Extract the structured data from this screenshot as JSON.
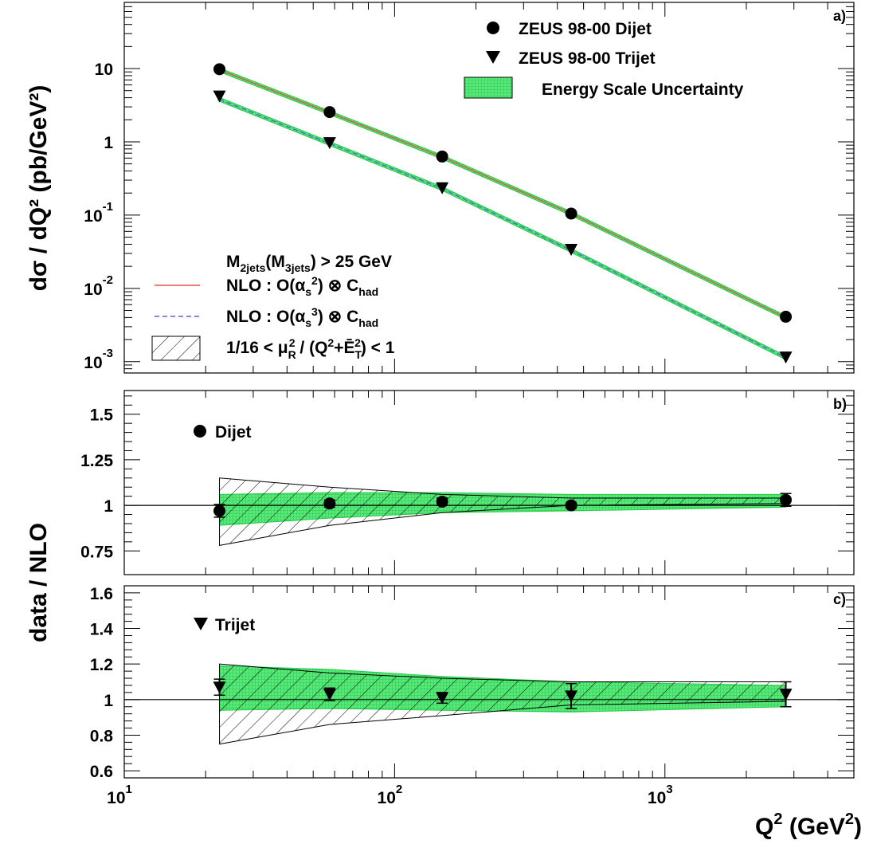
{
  "chart_data": [
    {
      "panel": "a)",
      "type": "scatter",
      "xscale": "log",
      "yscale": "log",
      "xlim": [
        10,
        5000
      ],
      "ylim": [
        0.0007,
        80
      ],
      "ylabel": "dσ / dQ² (pb/GeV²)",
      "ytick_labels": [
        {
          "value": 10,
          "base": "10",
          "exp": ""
        },
        {
          "value": 1,
          "base": "1",
          "exp": ""
        },
        {
          "value": 0.1,
          "base": "10",
          "exp": "-1"
        },
        {
          "value": 0.01,
          "base": "10",
          "exp": "-2"
        },
        {
          "value": 0.001,
          "base": "10",
          "exp": "-3"
        }
      ],
      "x": [
        22.5,
        57.5,
        150,
        450,
        2800
      ],
      "series": [
        {
          "name": "ZEUS 98-00 Dijet",
          "marker": "circle",
          "values": [
            9.8,
            2.55,
            0.63,
            0.105,
            0.0041
          ]
        },
        {
          "name": "ZEUS 98-00 Trijet",
          "marker": "triangle-down",
          "values": [
            4.2,
            0.97,
            0.235,
            0.034,
            0.00115
          ]
        }
      ],
      "nlo_dijet": [
        9.6,
        2.5,
        0.62,
        0.105,
        0.004
      ],
      "nlo_trijet": [
        3.8,
        0.95,
        0.23,
        0.033,
        0.00113
      ],
      "band_relative_width": 0.06,
      "legend_top": [
        {
          "marker": "circle",
          "label": "ZEUS 98-00 Dijet"
        },
        {
          "marker": "triangle-down",
          "label": "ZEUS 98-00 Trijet"
        },
        {
          "marker": "green-box",
          "label": "Energy Scale Uncertainty"
        }
      ],
      "legend_bottom": {
        "header": {
          "m1": "M",
          "s1": "2jets",
          "m2": "(M",
          "s2": "3jets",
          "m3": ")  >  25 GeV"
        },
        "nlo2": {
          "a": "NLO : O(α",
          "s": "s",
          "p": "2",
          "b": ") ⊗ C",
          "c": "had"
        },
        "nlo3": {
          "a": "NLO : O(α",
          "s": "s",
          "p": "3",
          "b": ") ⊗ C",
          "c": "had"
        },
        "scale": {
          "a": "1/16 < μ",
          "sub": "R",
          "sup": "2",
          "b": " / (Q",
          "p": "2",
          "c": "+Ē",
          "sub2": "T",
          "sup2": "2",
          "d": ") < 1"
        }
      },
      "colors": {
        "nlo2": "#e8534a",
        "nlo3": "#5a5ae8",
        "band": "#33dd55"
      }
    },
    {
      "panel": "b)",
      "type": "scatter",
      "xscale": "log",
      "xlim": [
        10,
        5000
      ],
      "ylim": [
        0.62,
        1.63
      ],
      "ytick_labels": [
        "1.5",
        "1.25",
        "1",
        "0.75"
      ],
      "ytick_values": [
        1.5,
        1.25,
        1.0,
        0.75
      ],
      "series_label": "Dijet",
      "x": [
        22.5,
        57.5,
        150,
        450,
        2800
      ],
      "values": [
        0.97,
        1.01,
        1.02,
        1.0,
        1.03
      ],
      "errors": [
        0.035,
        0.02,
        0.02,
        0.015,
        0.035
      ],
      "scale_band": {
        "lower": [
          0.78,
          0.89,
          0.96,
          1.0,
          1.01
        ],
        "upper": [
          1.15,
          1.1,
          1.06,
          1.04,
          1.04
        ]
      },
      "energy_band": {
        "lower": [
          0.89,
          0.93,
          0.96,
          0.97,
          0.99
        ],
        "upper": [
          1.06,
          1.07,
          1.07,
          1.06,
          1.06
        ]
      }
    },
    {
      "panel": "c)",
      "type": "scatter",
      "xscale": "log",
      "xlim": [
        10,
        5000
      ],
      "ylim": [
        0.56,
        1.64
      ],
      "ylabel_shared": "data / NLO",
      "ytick_labels": [
        "1.6",
        "1.4",
        "1.2",
        "1",
        "0.8",
        "0.6"
      ],
      "ytick_values": [
        1.6,
        1.4,
        1.2,
        1.0,
        0.8,
        0.6
      ],
      "series_label": "Trijet",
      "x": [
        22.5,
        57.5,
        150,
        450,
        2800
      ],
      "values": [
        1.07,
        1.03,
        1.01,
        1.02,
        1.03
      ],
      "errors": [
        0.045,
        0.035,
        0.03,
        0.07,
        0.07
      ],
      "scale_band": {
        "lower": [
          0.75,
          0.86,
          0.91,
          0.97,
          0.99
        ],
        "upper": [
          1.2,
          1.15,
          1.12,
          1.1,
          1.1
        ]
      },
      "energy_band": {
        "lower": [
          0.94,
          0.95,
          0.94,
          0.93,
          0.96
        ],
        "upper": [
          1.19,
          1.17,
          1.13,
          1.1,
          1.08
        ]
      }
    }
  ],
  "x_axis": {
    "label": {
      "q": "Q",
      "sup": "2",
      "rest": " (GeV",
      "sup2": "2",
      "end": ")"
    },
    "tick_labels": [
      {
        "value": 10,
        "base": "10",
        "exp": "1"
      },
      {
        "value": 100,
        "base": "10",
        "exp": "2"
      },
      {
        "value": 1000,
        "base": "10",
        "exp": "3"
      }
    ]
  }
}
